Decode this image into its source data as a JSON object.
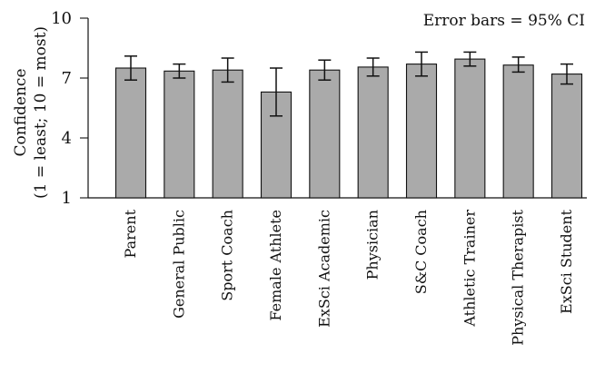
{
  "chart_data": {
    "type": "bar",
    "annotation": "Error bars = 95% CI",
    "ylabel_line_1": "Confidence",
    "ylabel_line_2": "(1 = least; 10 = most)",
    "ylim": [
      1,
      10
    ],
    "yticks": [
      1,
      4,
      7,
      10
    ],
    "categories": [
      "Parent",
      "General Public",
      "Sport Coach",
      "Female Athlete",
      "ExSci Academic",
      "Physician",
      "S&C Coach",
      "Athletic Trainer",
      "Physical Therapist",
      "ExSci Student"
    ],
    "values": [
      7.5,
      7.35,
      7.4,
      6.3,
      7.4,
      7.55,
      7.7,
      7.95,
      7.65,
      7.2
    ],
    "ci_lower": [
      6.9,
      7.0,
      6.8,
      5.1,
      6.9,
      7.1,
      7.1,
      7.6,
      7.3,
      6.7
    ],
    "ci_upper": [
      8.1,
      7.7,
      8.0,
      7.5,
      7.9,
      8.0,
      8.3,
      8.3,
      8.05,
      7.7
    ],
    "bar_color": "#aaaaaa"
  }
}
